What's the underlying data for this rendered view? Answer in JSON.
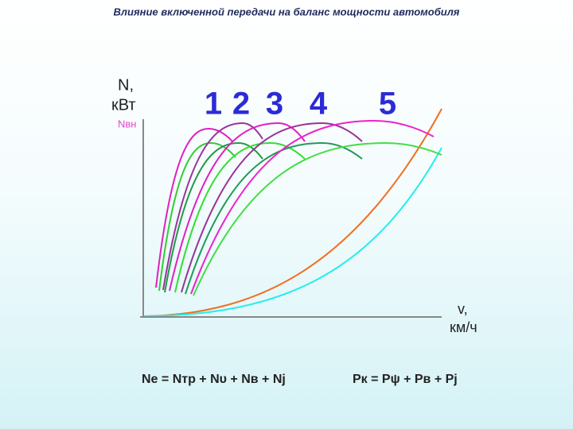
{
  "title": "Влияние включенной передачи на баланс мощности автомобиля",
  "y_axis": {
    "label": "N,",
    "unit": "кВт",
    "curve_label": "Nвн"
  },
  "gears": [
    "1",
    "2",
    "3",
    "4",
    "5"
  ],
  "x_axis": {
    "label": "v,",
    "unit": "км/ч"
  },
  "formulas": [
    "Nе = Nтр + Nυ + Nв + Nj",
    "Pк = Pψ + Pв + Pj"
  ]
}
